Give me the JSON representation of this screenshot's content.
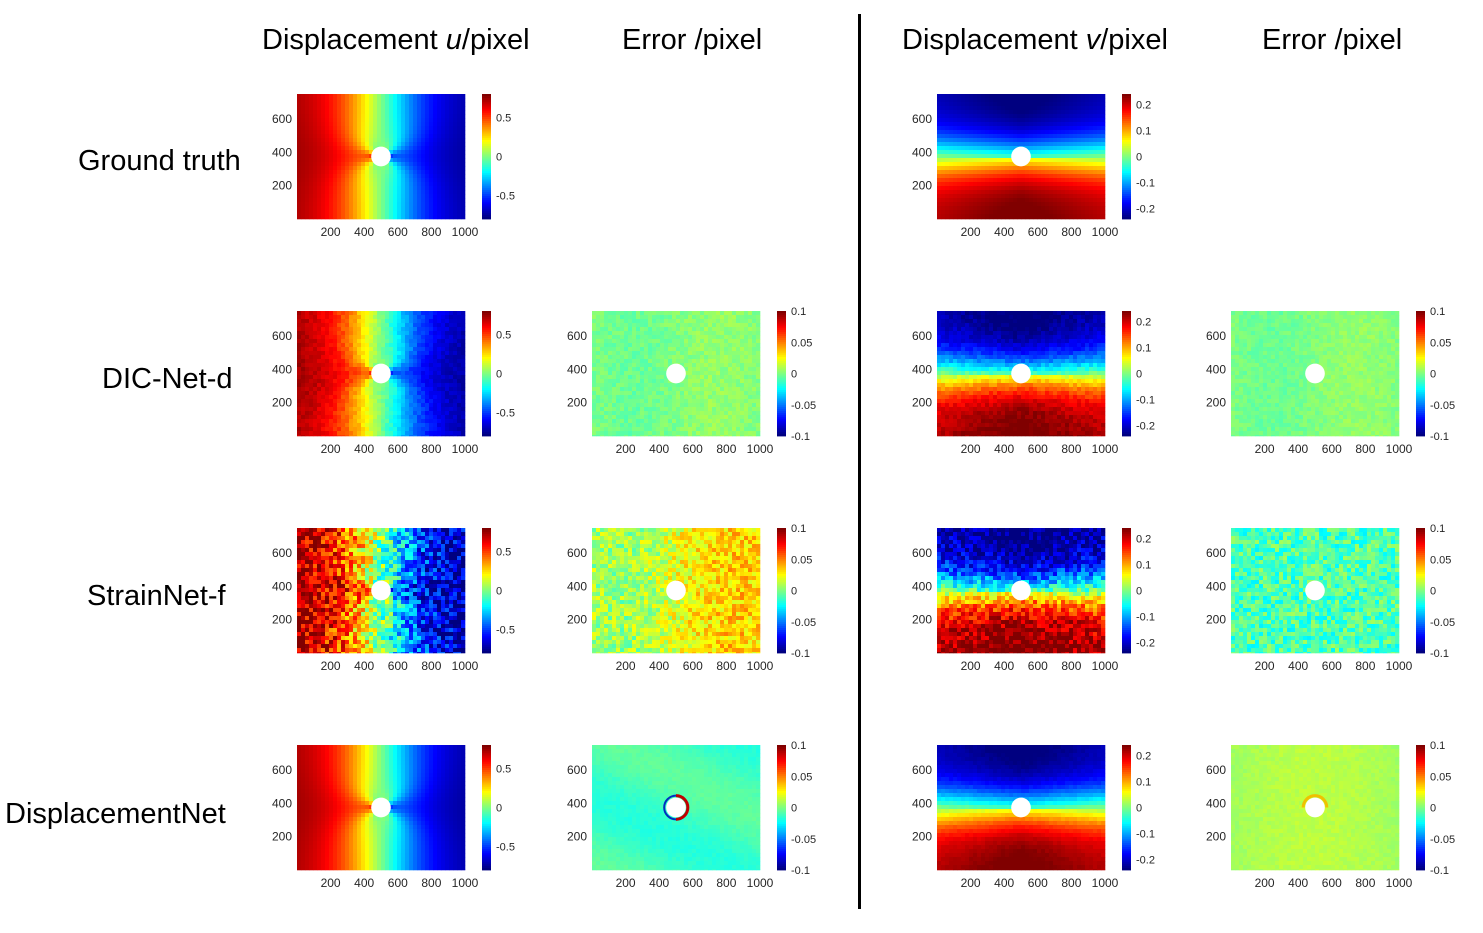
{
  "column_titles": {
    "u": {
      "pre": "Displacement ",
      "var": "u",
      "post": "/pixel"
    },
    "u_error": "Error /pixel",
    "v": {
      "pre": "Displacement ",
      "var": "v",
      "post": "/pixel"
    },
    "v_error": "Error /pixel"
  },
  "row_labels": [
    "Ground truth",
    "DIC-Net-d",
    "StrainNet-f",
    "DisplacementNet"
  ],
  "chart_data": [
    {
      "type": "heatmap",
      "row": "Ground truth",
      "column": "Displacement u",
      "field": "u",
      "noise": 0,
      "x_ticks": [
        200,
        400,
        600,
        800,
        1000
      ],
      "y_ticks": [
        200,
        400,
        600
      ],
      "xlim": [
        0,
        1000
      ],
      "ylim": [
        0,
        750
      ],
      "colorbar": {
        "min": -0.8,
        "max": 0.8,
        "ticks": [
          "0.5",
          "0",
          "-0.5"
        ],
        "tick_values": [
          0.5,
          0,
          -0.5
        ]
      },
      "hole": {
        "x": 500,
        "y": 375,
        "r": 75
      }
    },
    {
      "type": "heatmap",
      "row": "Ground truth",
      "column": "Displacement v",
      "field": "v",
      "noise": 0,
      "x_ticks": [
        200,
        400,
        600,
        800,
        1000
      ],
      "y_ticks": [
        200,
        400,
        600
      ],
      "xlim": [
        0,
        1000
      ],
      "ylim": [
        0,
        750
      ],
      "colorbar": {
        "min": -0.24,
        "max": 0.24,
        "ticks": [
          "0.2",
          "0.1",
          "0",
          "-0.1",
          "-0.2"
        ],
        "tick_values": [
          0.2,
          0.1,
          0,
          -0.1,
          -0.2
        ]
      },
      "hole": {
        "x": 500,
        "y": 375,
        "r": 75
      }
    },
    {
      "type": "heatmap",
      "row": "DIC-Net-d",
      "column": "Displacement u",
      "field": "u",
      "noise": 0.01,
      "x_ticks": [
        200,
        400,
        600,
        800,
        1000
      ],
      "y_ticks": [
        200,
        400,
        600
      ],
      "xlim": [
        0,
        1000
      ],
      "ylim": [
        0,
        750
      ],
      "colorbar": {
        "min": -0.8,
        "max": 0.8,
        "ticks": [
          "0.5",
          "0",
          "-0.5"
        ],
        "tick_values": [
          0.5,
          0,
          -0.5
        ]
      },
      "hole": {
        "x": 500,
        "y": 375,
        "r": 75
      }
    },
    {
      "type": "heatmap",
      "row": "DIC-Net-d",
      "column": "Error u",
      "field": "err",
      "noise": 0.012,
      "x_ticks": [
        200,
        400,
        600,
        800,
        1000
      ],
      "y_ticks": [
        200,
        400,
        600
      ],
      "xlim": [
        0,
        1000
      ],
      "ylim": [
        0,
        750
      ],
      "colorbar": {
        "min": -0.1,
        "max": 0.1,
        "ticks": [
          "0.1",
          "0.05",
          "0",
          "-0.05",
          "-0.1"
        ],
        "tick_values": [
          0.1,
          0.05,
          0,
          -0.05,
          -0.1
        ]
      },
      "hole": {
        "x": 500,
        "y": 375,
        "r": 75
      }
    },
    {
      "type": "heatmap",
      "row": "DIC-Net-d",
      "column": "Displacement v",
      "field": "v",
      "noise": 0.012,
      "x_ticks": [
        200,
        400,
        600,
        800,
        1000
      ],
      "y_ticks": [
        200,
        400,
        600
      ],
      "xlim": [
        0,
        1000
      ],
      "ylim": [
        0,
        750
      ],
      "colorbar": {
        "min": -0.24,
        "max": 0.24,
        "ticks": [
          "0.2",
          "0.1",
          "0",
          "-0.1",
          "-0.2"
        ],
        "tick_values": [
          0.2,
          0.1,
          0,
          -0.1,
          -0.2
        ]
      },
      "hole": {
        "x": 500,
        "y": 375,
        "r": 75
      }
    },
    {
      "type": "heatmap",
      "row": "DIC-Net-d",
      "column": "Error v",
      "field": "err",
      "noise": 0.01,
      "x_ticks": [
        200,
        400,
        600,
        800,
        1000
      ],
      "y_ticks": [
        200,
        400,
        600
      ],
      "xlim": [
        0,
        1000
      ],
      "ylim": [
        0,
        750
      ],
      "colorbar": {
        "min": -0.1,
        "max": 0.1,
        "ticks": [
          "0.1",
          "0.05",
          "0",
          "-0.05",
          "-0.1"
        ],
        "tick_values": [
          0.1,
          0.05,
          0,
          -0.05,
          -0.1
        ]
      },
      "hole": {
        "x": 500,
        "y": 375,
        "r": 75
      }
    },
    {
      "type": "heatmap",
      "row": "StrainNet-f",
      "column": "Displacement u",
      "field": "u",
      "noise": 0.06,
      "x_ticks": [
        200,
        400,
        600,
        800,
        1000
      ],
      "y_ticks": [
        200,
        400,
        600
      ],
      "xlim": [
        0,
        1000
      ],
      "ylim": [
        0,
        750
      ],
      "colorbar": {
        "min": -0.8,
        "max": 0.8,
        "ticks": [
          "0.5",
          "0",
          "-0.5"
        ],
        "tick_values": [
          0.5,
          0,
          -0.5
        ]
      },
      "hole": {
        "x": 500,
        "y": 375,
        "r": 75
      }
    },
    {
      "type": "heatmap",
      "row": "StrainNet-f",
      "column": "Error u",
      "field": "err_u",
      "noise": 0.035,
      "x_ticks": [
        200,
        400,
        600,
        800,
        1000
      ],
      "y_ticks": [
        200,
        400,
        600
      ],
      "xlim": [
        0,
        1000
      ],
      "ylim": [
        0,
        750
      ],
      "colorbar": {
        "min": -0.1,
        "max": 0.1,
        "ticks": [
          "0.1",
          "0.05",
          "0",
          "-0.05",
          "-0.1"
        ],
        "tick_values": [
          0.1,
          0.05,
          0,
          -0.05,
          -0.1
        ]
      },
      "hole": {
        "x": 500,
        "y": 375,
        "r": 75
      }
    },
    {
      "type": "heatmap",
      "row": "StrainNet-f",
      "column": "Displacement v",
      "field": "v",
      "noise": 0.04,
      "x_ticks": [
        200,
        400,
        600,
        800,
        1000
      ],
      "y_ticks": [
        200,
        400,
        600
      ],
      "xlim": [
        0,
        1000
      ],
      "ylim": [
        0,
        750
      ],
      "colorbar": {
        "min": -0.24,
        "max": 0.24,
        "ticks": [
          "0.2",
          "0.1",
          "0",
          "-0.1",
          "-0.2"
        ],
        "tick_values": [
          0.2,
          0.1,
          0,
          -0.1,
          -0.2
        ]
      },
      "hole": {
        "x": 500,
        "y": 375,
        "r": 75
      }
    },
    {
      "type": "heatmap",
      "row": "StrainNet-f",
      "column": "Error v",
      "field": "err_v",
      "noise": 0.035,
      "x_ticks": [
        200,
        400,
        600,
        800,
        1000
      ],
      "y_ticks": [
        200,
        400,
        600
      ],
      "xlim": [
        0,
        1000
      ],
      "ylim": [
        0,
        750
      ],
      "colorbar": {
        "min": -0.1,
        "max": 0.1,
        "ticks": [
          "0.1",
          "0.05",
          "0",
          "-0.05",
          "-0.1"
        ],
        "tick_values": [
          0.1,
          0.05,
          0,
          -0.05,
          -0.1
        ]
      },
      "hole": {
        "x": 500,
        "y": 375,
        "r": 75
      }
    },
    {
      "type": "heatmap",
      "row": "DisplacementNet",
      "column": "Displacement u",
      "field": "u",
      "noise": 0,
      "x_ticks": [
        200,
        400,
        600,
        800,
        1000
      ],
      "y_ticks": [
        200,
        400,
        600
      ],
      "xlim": [
        0,
        1000
      ],
      "ylim": [
        0,
        750
      ],
      "colorbar": {
        "min": -0.8,
        "max": 0.8,
        "ticks": [
          "0.5",
          "0",
          "-0.5"
        ],
        "tick_values": [
          0.5,
          0,
          -0.5
        ]
      },
      "hole": {
        "x": 500,
        "y": 375,
        "r": 75
      }
    },
    {
      "type": "heatmap",
      "row": "DisplacementNet",
      "column": "Error u",
      "field": "err_smooth_u",
      "noise": 0.004,
      "x_ticks": [
        200,
        400,
        600,
        800,
        1000
      ],
      "y_ticks": [
        200,
        400,
        600
      ],
      "xlim": [
        0,
        1000
      ],
      "ylim": [
        0,
        750
      ],
      "colorbar": {
        "min": -0.1,
        "max": 0.1,
        "ticks": [
          "0.1",
          "0.05",
          "0",
          "-0.05",
          "-0.1"
        ],
        "tick_values": [
          0.1,
          0.05,
          0,
          -0.05,
          -0.1
        ]
      },
      "hole": {
        "x": 500,
        "y": 375,
        "r": 75
      }
    },
    {
      "type": "heatmap",
      "row": "DisplacementNet",
      "column": "Displacement v",
      "field": "v",
      "noise": 0.004,
      "x_ticks": [
        200,
        400,
        600,
        800,
        1000
      ],
      "y_ticks": [
        200,
        400,
        600
      ],
      "xlim": [
        0,
        1000
      ],
      "ylim": [
        0,
        750
      ],
      "colorbar": {
        "min": -0.24,
        "max": 0.24,
        "ticks": [
          "0.2",
          "0.1",
          "0",
          "-0.1",
          "-0.2"
        ],
        "tick_values": [
          0.2,
          0.1,
          0,
          -0.1,
          -0.2
        ]
      },
      "hole": {
        "x": 500,
        "y": 375,
        "r": 75
      }
    },
    {
      "type": "heatmap",
      "row": "DisplacementNet",
      "column": "Error v",
      "field": "err_smooth_v",
      "noise": 0.006,
      "x_ticks": [
        200,
        400,
        600,
        800,
        1000
      ],
      "y_ticks": [
        200,
        400,
        600
      ],
      "xlim": [
        0,
        1000
      ],
      "ylim": [
        0,
        750
      ],
      "colorbar": {
        "min": -0.1,
        "max": 0.1,
        "ticks": [
          "0.1",
          "0.05",
          "0",
          "-0.05",
          "-0.1"
        ],
        "tick_values": [
          0.1,
          0.05,
          0,
          -0.05,
          -0.1
        ]
      },
      "hole": {
        "x": 500,
        "y": 375,
        "r": 75
      }
    }
  ]
}
